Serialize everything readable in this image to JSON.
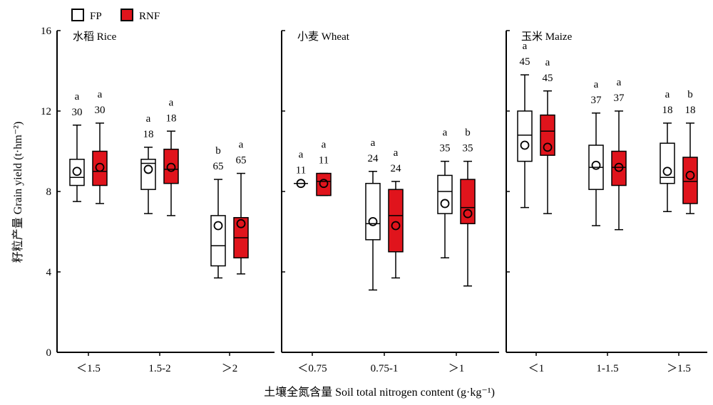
{
  "chart_data": {
    "type": "box",
    "ylabel": "籽粒产量 Grain yield (t·hm⁻²)",
    "xlabel": "土壤全氮含量 Soil total nitrogen content (g·kg⁻¹)",
    "ylim": [
      0,
      16
    ],
    "yticks": [
      0,
      4,
      8,
      12,
      16
    ],
    "legend": {
      "placement": "top-left",
      "entries": [
        {
          "name": "FP",
          "color": "#ffffff"
        },
        {
          "name": "RNF",
          "color": "#e0141c"
        }
      ]
    },
    "colors": {
      "FP": "#ffffff",
      "RNF": "#e0141c",
      "outline": "#000000"
    },
    "panels": [
      {
        "title": "水稻 Rice",
        "categories": [
          "＜1.5",
          "1.5-2",
          "＞2"
        ],
        "groups": [
          {
            "FP": {
              "min": 7.5,
              "q1": 8.3,
              "median": 8.7,
              "q3": 9.6,
              "max": 11.3,
              "mean": 9.0,
              "n": "30",
              "letter": "a"
            },
            "RNF": {
              "min": 7.4,
              "q1": 8.3,
              "median": 9.0,
              "q3": 10.0,
              "max": 11.4,
              "mean": 9.2,
              "n": "30",
              "letter": "a"
            }
          },
          {
            "FP": {
              "min": 6.9,
              "q1": 8.1,
              "median": 9.4,
              "q3": 9.6,
              "max": 10.2,
              "mean": 9.1,
              "n": "18",
              "letter": "a"
            },
            "RNF": {
              "min": 6.8,
              "q1": 8.4,
              "median": 9.1,
              "q3": 10.1,
              "max": 11.0,
              "mean": 9.2,
              "n": "18",
              "letter": "a"
            }
          },
          {
            "FP": {
              "min": 3.7,
              "q1": 4.3,
              "median": 5.3,
              "q3": 6.8,
              "max": 8.6,
              "mean": 6.3,
              "n": "65",
              "letter": "b"
            },
            "RNF": {
              "min": 3.9,
              "q1": 4.7,
              "median": 5.7,
              "q3": 6.7,
              "max": 8.9,
              "mean": 6.4,
              "n": "65",
              "letter": "a"
            }
          }
        ]
      },
      {
        "title": "小麦 Wheat",
        "categories": [
          "＜0.75",
          "0.75-1",
          "＞1"
        ],
        "groups": [
          {
            "FP": {
              "min": 8.4,
              "q1": 8.4,
              "median": 8.4,
              "q3": 8.4,
              "max": 8.4,
              "mean": 8.4,
              "n": "11",
              "letter": "a"
            },
            "RNF": {
              "min": 7.8,
              "q1": 7.8,
              "median": 8.5,
              "q3": 8.9,
              "max": 8.9,
              "mean": 8.4,
              "n": "11",
              "letter": "a"
            }
          },
          {
            "FP": {
              "min": 3.1,
              "q1": 5.6,
              "median": 6.4,
              "q3": 8.4,
              "max": 9.0,
              "mean": 6.5,
              "n": "24",
              "letter": "a"
            },
            "RNF": {
              "min": 3.7,
              "q1": 5.0,
              "median": 6.8,
              "q3": 8.1,
              "max": 8.5,
              "mean": 6.3,
              "n": "24",
              "letter": "a"
            }
          },
          {
            "FP": {
              "min": 4.7,
              "q1": 6.9,
              "median": 8.0,
              "q3": 8.8,
              "max": 9.5,
              "mean": 7.4,
              "n": "35",
              "letter": "a"
            },
            "RNF": {
              "min": 3.3,
              "q1": 6.4,
              "median": 7.2,
              "q3": 8.6,
              "max": 9.5,
              "mean": 6.9,
              "n": "35",
              "letter": "b"
            }
          }
        ]
      },
      {
        "title": "玉米 Maize",
        "categories": [
          "＜1",
          "1-1.5",
          "＞1.5"
        ],
        "groups": [
          {
            "FP": {
              "min": 7.2,
              "q1": 9.5,
              "median": 10.8,
              "q3": 12.0,
              "max": 13.8,
              "mean": 10.3,
              "n": "45",
              "letter": "a"
            },
            "RNF": {
              "min": 6.9,
              "q1": 9.8,
              "median": 11.0,
              "q3": 11.8,
              "max": 13.0,
              "mean": 10.2,
              "n": "45",
              "letter": "a"
            }
          },
          {
            "FP": {
              "min": 6.3,
              "q1": 8.1,
              "median": 9.2,
              "q3": 10.3,
              "max": 11.9,
              "mean": 9.3,
              "n": "37",
              "letter": "a"
            },
            "RNF": {
              "min": 6.1,
              "q1": 8.3,
              "median": 9.2,
              "q3": 10.0,
              "max": 12.0,
              "mean": 9.2,
              "n": "37",
              "letter": "a"
            }
          },
          {
            "FP": {
              "min": 7.0,
              "q1": 8.4,
              "median": 8.7,
              "q3": 10.4,
              "max": 11.4,
              "mean": 9.0,
              "n": "18",
              "letter": "a"
            },
            "RNF": {
              "min": 6.9,
              "q1": 7.4,
              "median": 8.5,
              "q3": 9.7,
              "max": 11.4,
              "mean": 8.8,
              "n": "18",
              "letter": "b"
            }
          }
        ]
      }
    ]
  }
}
